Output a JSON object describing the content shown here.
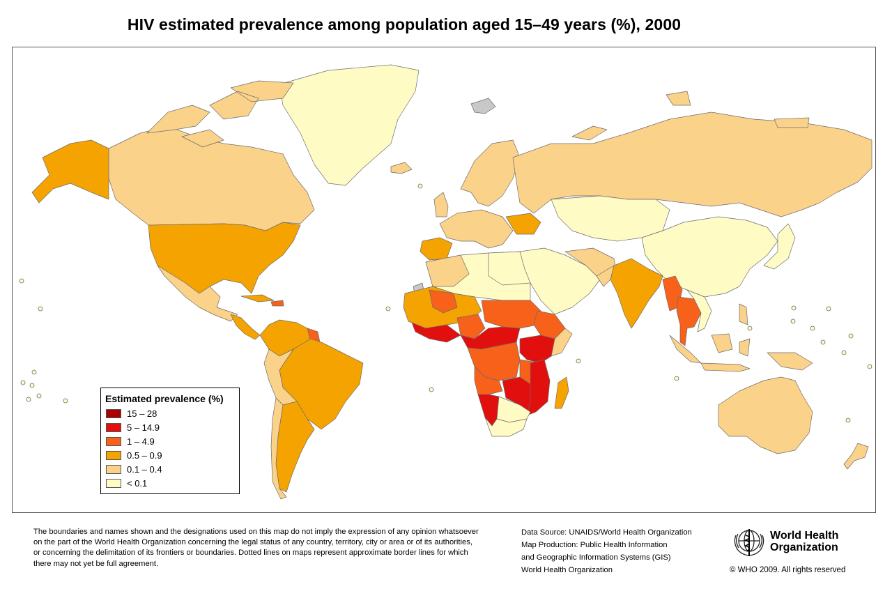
{
  "title": "HIV estimated prevalence among population aged 15–49 years (%), 2000",
  "colors": {
    "c15_28": "#a80000",
    "c5_14": "#e20f0f",
    "c1_4": "#f8611a",
    "c05_09": "#f5a300",
    "c01_04": "#fbd28a",
    "clt01": "#fffbc4",
    "nodata": "#c8c8c8",
    "ocean": "#ffffff",
    "border": "#6b6b6b"
  },
  "legend": {
    "title": "Estimated prevalence (%)",
    "items": [
      {
        "label": "15 – 28",
        "color": "#a80000"
      },
      {
        "label": "5 – 14.9",
        "color": "#e20f0f"
      },
      {
        "label": "1 – 4.9",
        "color": "#f8611a"
      },
      {
        "label": "0.5 – 0.9",
        "color": "#f5a300"
      },
      {
        "label": "0.1 – 0.4",
        "color": "#fbd28a"
      },
      {
        "label": "< 0.1",
        "color": "#fffbc4"
      }
    ]
  },
  "disclaimer": [
    "The boundaries and names shown and the designations used on this map do not imply the expression of any opinion whatsoever",
    "on the part of the World Health Organization concerning the legal status of any country, territory, city or area or of its authorities,",
    "or concerning the delimitation of its frontiers or boundaries.  Dotted lines on maps represent approximate border lines for which",
    "there may not yet be full agreement."
  ],
  "credits": [
    "Data Source: UNAIDS/World Health Organization",
    "Map Production: Public Health Information",
    "and Geographic Information Systems (GIS)",
    "World Health Organization"
  ],
  "who": {
    "line1": "World Health",
    "line2": "Organization",
    "copyright": "© WHO 2009. All rights reserved"
  }
}
